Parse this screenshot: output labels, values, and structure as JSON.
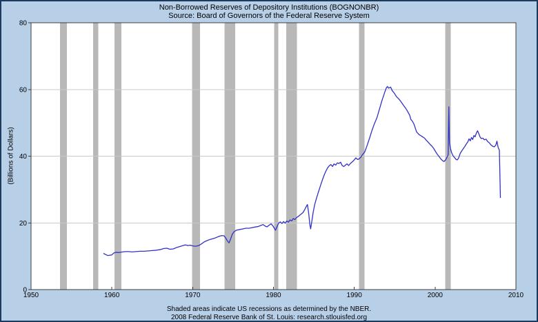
{
  "window": {
    "background": "#b8cfe8",
    "border_color": "#1c3a5e"
  },
  "header": {
    "title": "Non-Borrowed Reserves of Depository Institutions (BOGNONBR)",
    "source": "Source: Board of Governors of the Federal Reserve System"
  },
  "footer": {
    "recession_note": "Shaded areas indicate US recessions as determined by the NBER.",
    "attribution": "2008 Federal Reserve Bank of St. Louis: research.stlouisfed.org"
  },
  "chart_data": {
    "type": "line",
    "title": "Non-Borrowed Reserves of Depository Institutions (BOGNONBR)",
    "subtitle": "Source: Board of Governors of the Federal Reserve System",
    "xlabel": "",
    "ylabel": "(Billions of Dollars)",
    "xlim": [
      1950,
      2010
    ],
    "ylim": [
      0,
      80
    ],
    "xticks": [
      1950,
      1960,
      1970,
      1980,
      1990,
      2000,
      2010
    ],
    "yticks": [
      0,
      20,
      40,
      60,
      80
    ],
    "grid_values": [
      20,
      40,
      60
    ],
    "grid_on": true,
    "legend": "none",
    "plot_bg": "#ffffff",
    "grid_color": "#c9c9c9",
    "frame_color": "#3c3c3c",
    "line_color": "#3030c8",
    "recession_color": "#b8b8b8",
    "recessions": [
      [
        1953.58,
        1954.42
      ],
      [
        1957.67,
        1958.33
      ],
      [
        1960.33,
        1961.17
      ],
      [
        1969.92,
        1970.92
      ],
      [
        1973.92,
        1975.25
      ],
      [
        1980.08,
        1980.58
      ],
      [
        1981.58,
        1982.92
      ],
      [
        1990.58,
        1991.25
      ],
      [
        2001.25,
        2001.92
      ]
    ],
    "series": [
      {
        "name": "BOGNONBR",
        "points": [
          [
            1959.0,
            10.8
          ],
          [
            1959.25,
            10.5
          ],
          [
            1959.5,
            10.2
          ],
          [
            1959.75,
            10.3
          ],
          [
            1960.0,
            10.4
          ],
          [
            1960.2,
            10.9
          ],
          [
            1960.5,
            11.2
          ],
          [
            1960.9,
            11.1
          ],
          [
            1961.3,
            11.3
          ],
          [
            1961.7,
            11.4
          ],
          [
            1962.1,
            11.4
          ],
          [
            1962.5,
            11.3
          ],
          [
            1963.0,
            11.4
          ],
          [
            1963.5,
            11.5
          ],
          [
            1964.0,
            11.5
          ],
          [
            1964.5,
            11.6
          ],
          [
            1965.0,
            11.7
          ],
          [
            1965.5,
            11.8
          ],
          [
            1966.0,
            12.0
          ],
          [
            1966.4,
            12.3
          ],
          [
            1966.8,
            12.4
          ],
          [
            1967.2,
            12.1
          ],
          [
            1967.6,
            12.2
          ],
          [
            1968.0,
            12.6
          ],
          [
            1968.4,
            12.9
          ],
          [
            1968.8,
            13.2
          ],
          [
            1969.1,
            13.4
          ],
          [
            1969.4,
            13.2
          ],
          [
            1969.7,
            13.3
          ],
          [
            1970.0,
            13.1
          ],
          [
            1970.3,
            13.0
          ],
          [
            1970.6,
            13.1
          ],
          [
            1970.9,
            13.4
          ],
          [
            1971.2,
            13.9
          ],
          [
            1971.5,
            14.4
          ],
          [
            1971.8,
            14.7
          ],
          [
            1972.1,
            15.0
          ],
          [
            1972.4,
            15.2
          ],
          [
            1972.7,
            15.4
          ],
          [
            1973.0,
            15.7
          ],
          [
            1973.3,
            16.0
          ],
          [
            1973.6,
            16.2
          ],
          [
            1973.9,
            16.1
          ],
          [
            1974.1,
            15.4
          ],
          [
            1974.3,
            14.6
          ],
          [
            1974.5,
            14.0
          ],
          [
            1974.7,
            15.2
          ],
          [
            1974.9,
            16.6
          ],
          [
            1975.1,
            17.3
          ],
          [
            1975.4,
            17.8
          ],
          [
            1975.8,
            18.0
          ],
          [
            1976.2,
            18.2
          ],
          [
            1976.6,
            18.4
          ],
          [
            1977.0,
            18.4
          ],
          [
            1977.4,
            18.6
          ],
          [
            1977.8,
            18.8
          ],
          [
            1978.1,
            18.9
          ],
          [
            1978.4,
            19.2
          ],
          [
            1978.7,
            19.5
          ],
          [
            1979.0,
            19.0
          ],
          [
            1979.2,
            18.8
          ],
          [
            1979.45,
            19.3
          ],
          [
            1979.7,
            19.7
          ],
          [
            1979.9,
            19.2
          ],
          [
            1980.1,
            18.4
          ],
          [
            1980.25,
            17.8
          ],
          [
            1980.45,
            18.9
          ],
          [
            1980.65,
            20.0
          ],
          [
            1980.85,
            20.3
          ],
          [
            1981.05,
            19.8
          ],
          [
            1981.25,
            20.4
          ],
          [
            1981.45,
            19.9
          ],
          [
            1981.65,
            20.6
          ],
          [
            1981.85,
            20.2
          ],
          [
            1982.05,
            20.9
          ],
          [
            1982.25,
            20.6
          ],
          [
            1982.45,
            21.3
          ],
          [
            1982.65,
            21.0
          ],
          [
            1982.85,
            21.6
          ],
          [
            1983.05,
            21.9
          ],
          [
            1983.25,
            22.3
          ],
          [
            1983.45,
            22.7
          ],
          [
            1983.65,
            23.1
          ],
          [
            1983.85,
            23.9
          ],
          [
            1984.05,
            24.9
          ],
          [
            1984.2,
            25.5
          ],
          [
            1984.35,
            23.0
          ],
          [
            1984.5,
            19.5
          ],
          [
            1984.6,
            18.2
          ],
          [
            1984.75,
            20.5
          ],
          [
            1984.9,
            23.0
          ],
          [
            1985.1,
            25.5
          ],
          [
            1985.3,
            27.2
          ],
          [
            1985.5,
            28.8
          ],
          [
            1985.7,
            30.3
          ],
          [
            1985.9,
            31.8
          ],
          [
            1986.1,
            33.2
          ],
          [
            1986.3,
            34.5
          ],
          [
            1986.5,
            35.6
          ],
          [
            1986.7,
            36.5
          ],
          [
            1986.9,
            37.1
          ],
          [
            1987.1,
            37.5
          ],
          [
            1987.3,
            36.9
          ],
          [
            1987.5,
            37.7
          ],
          [
            1987.7,
            37.3
          ],
          [
            1987.9,
            38.0
          ],
          [
            1988.1,
            37.8
          ],
          [
            1988.3,
            38.2
          ],
          [
            1988.5,
            37.2
          ],
          [
            1988.7,
            36.9
          ],
          [
            1988.9,
            37.3
          ],
          [
            1989.1,
            37.7
          ],
          [
            1989.3,
            37.2
          ],
          [
            1989.55,
            37.9
          ],
          [
            1989.8,
            38.4
          ],
          [
            1990.0,
            38.9
          ],
          [
            1990.2,
            39.5
          ],
          [
            1990.4,
            39.0
          ],
          [
            1990.6,
            39.2
          ],
          [
            1990.8,
            39.7
          ],
          [
            1991.0,
            40.4
          ],
          [
            1991.3,
            41.3
          ],
          [
            1991.6,
            43.3
          ],
          [
            1991.9,
            45.5
          ],
          [
            1992.2,
            47.8
          ],
          [
            1992.5,
            49.8
          ],
          [
            1992.8,
            51.5
          ],
          [
            1993.1,
            54.0
          ],
          [
            1993.4,
            56.5
          ],
          [
            1993.7,
            58.7
          ],
          [
            1993.95,
            60.4
          ],
          [
            1994.1,
            60.9
          ],
          [
            1994.25,
            60.4
          ],
          [
            1994.5,
            60.7
          ],
          [
            1994.7,
            59.6
          ],
          [
            1994.85,
            59.2
          ],
          [
            1995.0,
            58.7
          ],
          [
            1995.2,
            57.9
          ],
          [
            1995.45,
            57.3
          ],
          [
            1995.7,
            56.6
          ],
          [
            1995.9,
            55.9
          ],
          [
            1996.1,
            55.2
          ],
          [
            1996.35,
            54.4
          ],
          [
            1996.6,
            53.4
          ],
          [
            1996.85,
            52.3
          ],
          [
            1997.0,
            51.0
          ],
          [
            1997.15,
            50.6
          ],
          [
            1997.35,
            49.8
          ],
          [
            1997.5,
            48.8
          ],
          [
            1997.7,
            47.3
          ],
          [
            1998.0,
            46.5
          ],
          [
            1998.2,
            46.2
          ],
          [
            1998.45,
            45.8
          ],
          [
            1998.7,
            45.4
          ],
          [
            1998.9,
            44.8
          ],
          [
            1999.1,
            44.3
          ],
          [
            1999.35,
            43.6
          ],
          [
            1999.6,
            43.0
          ],
          [
            1999.8,
            42.4
          ],
          [
            2000.0,
            41.6
          ],
          [
            2000.2,
            40.8
          ],
          [
            2000.45,
            40.0
          ],
          [
            2000.7,
            39.2
          ],
          [
            2000.9,
            38.7
          ],
          [
            2001.1,
            38.4
          ],
          [
            2001.3,
            38.9
          ],
          [
            2001.5,
            39.8
          ],
          [
            2001.62,
            40.5
          ],
          [
            2001.7,
            54.8
          ],
          [
            2001.78,
            44.0
          ],
          [
            2001.9,
            42.3
          ],
          [
            2002.05,
            41.0
          ],
          [
            2002.2,
            40.2
          ],
          [
            2002.4,
            39.6
          ],
          [
            2002.6,
            39.0
          ],
          [
            2002.75,
            38.9
          ],
          [
            2002.9,
            39.4
          ],
          [
            2003.1,
            40.8
          ],
          [
            2003.3,
            41.6
          ],
          [
            2003.5,
            42.3
          ],
          [
            2003.7,
            43.0
          ],
          [
            2003.9,
            43.8
          ],
          [
            2004.05,
            44.3
          ],
          [
            2004.2,
            45.2
          ],
          [
            2004.35,
            44.6
          ],
          [
            2004.5,
            45.6
          ],
          [
            2004.65,
            45.0
          ],
          [
            2004.8,
            46.2
          ],
          [
            2004.95,
            45.8
          ],
          [
            2005.1,
            46.9
          ],
          [
            2005.25,
            47.6
          ],
          [
            2005.4,
            46.8
          ],
          [
            2005.55,
            45.8
          ],
          [
            2005.7,
            45.3
          ],
          [
            2005.9,
            45.4
          ],
          [
            2006.1,
            44.9
          ],
          [
            2006.3,
            45.1
          ],
          [
            2006.5,
            44.4
          ],
          [
            2006.7,
            44.0
          ],
          [
            2006.9,
            43.4
          ],
          [
            2007.1,
            43.0
          ],
          [
            2007.3,
            42.8
          ],
          [
            2007.5,
            43.2
          ],
          [
            2007.65,
            44.5
          ],
          [
            2007.8,
            42.6
          ],
          [
            2007.95,
            41.8
          ],
          [
            2008.08,
            27.6
          ]
        ]
      }
    ]
  }
}
